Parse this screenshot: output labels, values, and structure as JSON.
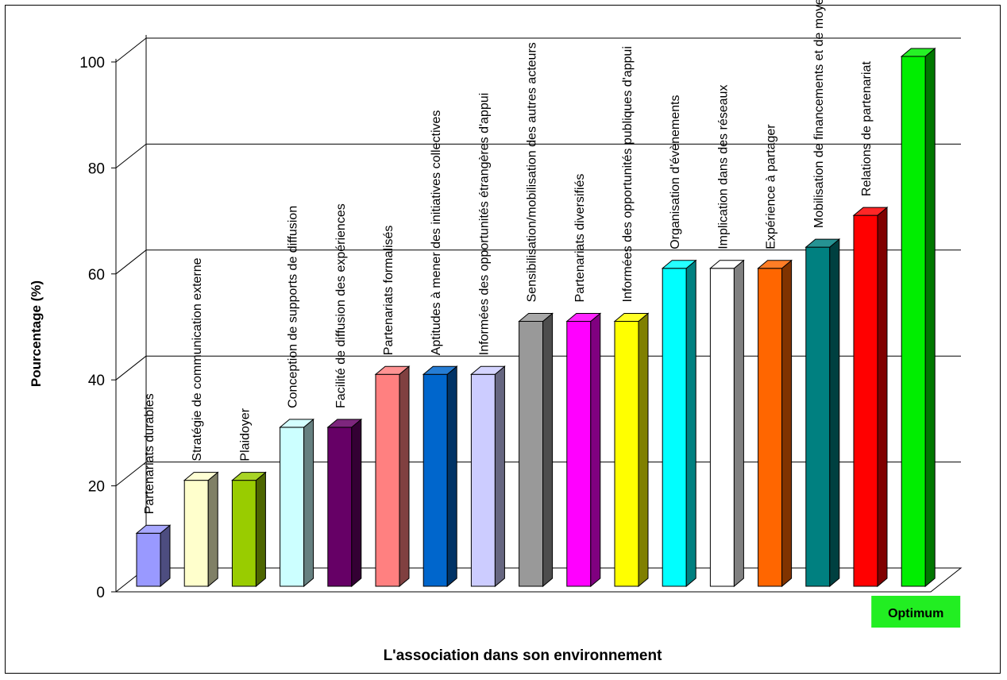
{
  "chart_data": {
    "type": "bar",
    "xlabel": "L'association dans son environnement",
    "ylabel": "Pourcentage (%)",
    "ylim": [
      0,
      100
    ],
    "yticks": [
      "0",
      "20",
      "40",
      "60",
      "80",
      "100"
    ],
    "grid": true,
    "categories": [
      "Partenariats durables",
      "Stratégie de communication externe",
      "Plaidoyer",
      "Conception de supports de diffusion",
      "Facilité de diffusion des expériences",
      "Partenariats formalisés",
      "Aptitudes à mener des initiatives collectives",
      "Informées des opportunités étrangères d'appui",
      "Sensibilisation/mobilisation des autres acteurs",
      "Partenariats diversifiés",
      "Informées des opportunités publiques d'appui",
      "Organisation d'évènements",
      "Implication dans des réseaux",
      "Expérience à partager",
      "Mobilisation de financements et de moyens",
      "Relations de partenariat",
      "Optimum"
    ],
    "values": [
      10,
      20,
      20,
      30,
      30,
      40,
      40,
      40,
      50,
      50,
      50,
      60,
      60,
      60,
      64,
      70,
      100
    ],
    "colors": [
      "#9999ff",
      "#ffffcc",
      "#99cc00",
      "#ccffff",
      "#660066",
      "#ff8080",
      "#0066cc",
      "#ccccff",
      "#999999",
      "#ff00ff",
      "#ffff00",
      "#00ffff",
      "#ffffff",
      "#ff6600",
      "#008080",
      "#ff0000",
      "#00ee00"
    ],
    "optimum_label_color": "#22ee22"
  }
}
